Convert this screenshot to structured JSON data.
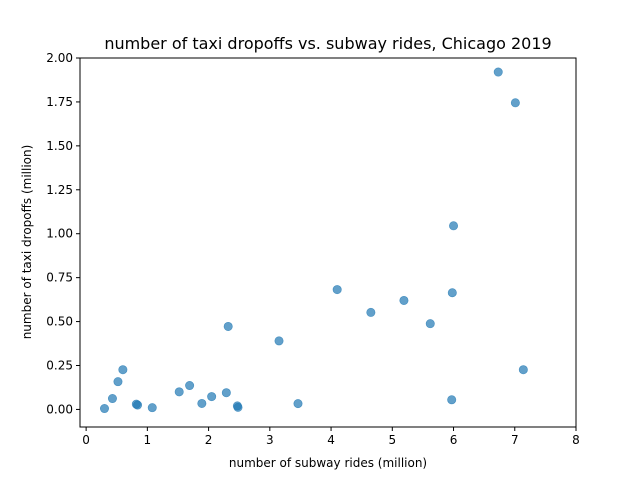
{
  "chart_data": {
    "type": "scatter",
    "title": "number of taxi dropoffs vs. subway rides, Chicago 2019",
    "xlabel": "number of subway rides (million)",
    "ylabel": "number of taxi dropoffs (million)",
    "xlim": [
      -0.1,
      8.0
    ],
    "ylim": [
      -0.1,
      2.0
    ],
    "x_ticks": [
      0,
      1,
      2,
      3,
      4,
      5,
      6,
      7,
      8
    ],
    "x_tick_labels": [
      "0",
      "1",
      "2",
      "3",
      "4",
      "5",
      "6",
      "7",
      "8"
    ],
    "y_ticks": [
      0.0,
      0.25,
      0.5,
      0.75,
      1.0,
      1.25,
      1.5,
      1.75,
      2.0
    ],
    "y_tick_labels": [
      "0.00",
      "0.25",
      "0.50",
      "0.75",
      "1.00",
      "1.25",
      "1.50",
      "1.75",
      "2.00"
    ],
    "grid": false,
    "point_color": "#1f77b4",
    "point_opacity": 0.7,
    "points": [
      {
        "x": 0.3,
        "y": 0.005
      },
      {
        "x": 0.43,
        "y": 0.062
      },
      {
        "x": 0.52,
        "y": 0.158
      },
      {
        "x": 0.6,
        "y": 0.226
      },
      {
        "x": 0.82,
        "y": 0.03
      },
      {
        "x": 0.84,
        "y": 0.025
      },
      {
        "x": 1.08,
        "y": 0.01
      },
      {
        "x": 1.52,
        "y": 0.1
      },
      {
        "x": 1.69,
        "y": 0.136
      },
      {
        "x": 1.89,
        "y": 0.034
      },
      {
        "x": 2.05,
        "y": 0.073
      },
      {
        "x": 2.29,
        "y": 0.095
      },
      {
        "x": 2.32,
        "y": 0.472
      },
      {
        "x": 2.47,
        "y": 0.02
      },
      {
        "x": 2.48,
        "y": 0.012
      },
      {
        "x": 3.15,
        "y": 0.39
      },
      {
        "x": 3.46,
        "y": 0.033
      },
      {
        "x": 4.1,
        "y": 0.682
      },
      {
        "x": 4.65,
        "y": 0.552
      },
      {
        "x": 5.19,
        "y": 0.62
      },
      {
        "x": 5.62,
        "y": 0.488
      },
      {
        "x": 5.97,
        "y": 0.055
      },
      {
        "x": 5.98,
        "y": 0.664
      },
      {
        "x": 6.0,
        "y": 1.045
      },
      {
        "x": 6.73,
        "y": 1.92
      },
      {
        "x": 7.01,
        "y": 1.745
      },
      {
        "x": 7.14,
        "y": 0.226
      }
    ]
  }
}
